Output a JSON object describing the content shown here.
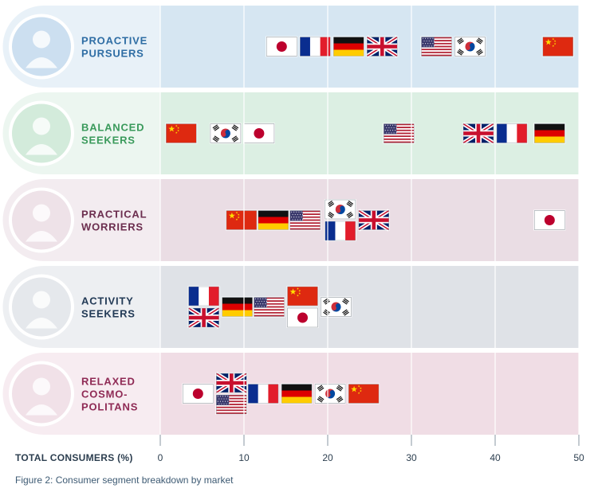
{
  "caption": "Figure 2: Consumer segment breakdown by market",
  "chart_data": {
    "type": "scatter",
    "xlabel": "TOTAL CONSUMERS (%)",
    "xlim": [
      0,
      50
    ],
    "xticks": [
      0,
      10,
      20,
      30,
      40,
      50
    ],
    "markers": "country flags",
    "segments": [
      {
        "label_lines": [
          "PROACTIVE",
          "PURSUERS"
        ],
        "color": "#2e6da4",
        "band_color": "#d6e6f2",
        "circle_color": "#ccdff0",
        "points": [
          {
            "country": "Japan",
            "x": 14.5
          },
          {
            "country": "France",
            "x": 18.5
          },
          {
            "country": "Germany",
            "x": 22.5
          },
          {
            "country": "UK",
            "x": 26.5
          },
          {
            "country": "USA",
            "x": 33.0
          },
          {
            "country": "South Korea",
            "x": 37.0
          },
          {
            "country": "China",
            "x": 47.5
          }
        ]
      },
      {
        "label_lines": [
          "BALANCED",
          "SEEKERS"
        ],
        "color": "#3a9a5b",
        "band_color": "#dcefe3",
        "circle_color": "#d3ebdb",
        "points": [
          {
            "country": "China",
            "x": 2.5
          },
          {
            "country": "South Korea",
            "x": 7.8
          },
          {
            "country": "Japan",
            "x": 11.8
          },
          {
            "country": "USA",
            "x": 28.5
          },
          {
            "country": "UK",
            "x": 38.0
          },
          {
            "country": "France",
            "x": 42.0
          },
          {
            "country": "Germany",
            "x": 46.5
          }
        ]
      },
      {
        "label_lines": [
          "PRACTICAL",
          "WORRIERS"
        ],
        "color": "#6b2d4e",
        "band_color": "#eadde4",
        "circle_color": "#eee2e8",
        "points": [
          {
            "country": "China",
            "x": 9.7
          },
          {
            "country": "Germany",
            "x": 13.5
          },
          {
            "country": "USA",
            "x": 17.3
          },
          {
            "country": "South Korea",
            "x": 21.5
          },
          {
            "country": "France",
            "x": 21.5
          },
          {
            "country": "UK",
            "x": 25.5
          },
          {
            "country": "Japan",
            "x": 46.5
          }
        ]
      },
      {
        "label_lines": [
          "ACTIVITY",
          "SEEKERS"
        ],
        "color": "#223a56",
        "band_color": "#dfe2e7",
        "circle_color": "#e5e8ec",
        "points": [
          {
            "country": "France",
            "x": 5.2
          },
          {
            "country": "UK",
            "x": 5.2
          },
          {
            "country": "Germany",
            "x": 9.2
          },
          {
            "country": "USA",
            "x": 13.0
          },
          {
            "country": "China",
            "x": 17.0
          },
          {
            "country": "Japan",
            "x": 17.0
          },
          {
            "country": "South Korea",
            "x": 21.0
          }
        ]
      },
      {
        "label_lines": [
          "RELAXED",
          "COSMO-",
          "POLITANS"
        ],
        "color": "#8f2a55",
        "band_color": "#f0dde5",
        "circle_color": "#f1e1e8",
        "points": [
          {
            "country": "Japan",
            "x": 4.5
          },
          {
            "country": "UK",
            "x": 8.5
          },
          {
            "country": "USA",
            "x": 8.5
          },
          {
            "country": "France",
            "x": 12.3
          },
          {
            "country": "Germany",
            "x": 16.3
          },
          {
            "country": "South Korea",
            "x": 20.3
          },
          {
            "country": "China",
            "x": 24.3
          }
        ]
      }
    ]
  }
}
